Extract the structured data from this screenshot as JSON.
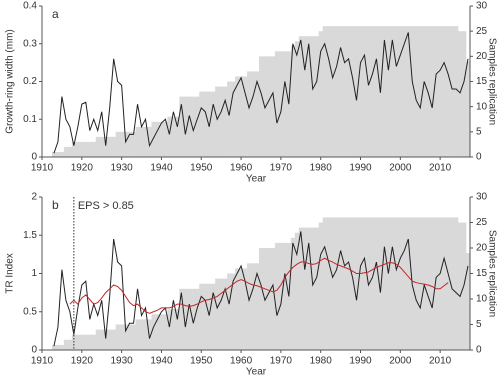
{
  "chart_data": [
    {
      "type": "line",
      "panel_label": "a",
      "xlabel": "Year",
      "ylabel": "Growth-ring width (mm)",
      "y2label": "Samples replication",
      "x": [
        1913,
        1914,
        1915,
        1916,
        1917,
        1918,
        1919,
        1920,
        1921,
        1922,
        1923,
        1924,
        1925,
        1926,
        1927,
        1928,
        1929,
        1930,
        1931,
        1932,
        1933,
        1934,
        1935,
        1936,
        1937,
        1938,
        1939,
        1940,
        1941,
        1942,
        1943,
        1944,
        1945,
        1946,
        1947,
        1948,
        1949,
        1950,
        1951,
        1952,
        1953,
        1954,
        1955,
        1956,
        1957,
        1958,
        1959,
        1960,
        1961,
        1962,
        1963,
        1964,
        1965,
        1966,
        1967,
        1968,
        1969,
        1970,
        1971,
        1972,
        1973,
        1974,
        1975,
        1976,
        1977,
        1978,
        1979,
        1980,
        1981,
        1982,
        1983,
        1984,
        1985,
        1986,
        1987,
        1988,
        1989,
        1990,
        1991,
        1992,
        1993,
        1994,
        1995,
        1996,
        1997,
        1998,
        1999,
        2000,
        2001,
        2002,
        2003,
        2004,
        2005,
        2006,
        2007,
        2008,
        2009,
        2010,
        2011,
        2012,
        2013,
        2014,
        2015,
        2016,
        2017
      ],
      "series": [
        {
          "type": "area",
          "axis": "y2",
          "color": "#d9d9d9",
          "values": [
            1,
            1,
            1,
            2,
            2,
            3,
            3,
            3,
            3,
            3,
            3,
            4,
            4,
            4,
            4,
            4,
            5,
            5,
            5,
            5,
            5,
            6,
            6,
            6,
            6,
            7,
            7,
            7,
            7,
            8,
            8,
            8,
            12,
            12,
            12,
            12,
            12,
            13,
            13,
            13,
            13,
            14,
            14,
            14,
            15,
            15,
            16,
            16,
            16,
            17,
            17,
            17,
            20,
            20,
            20,
            20,
            21,
            21,
            21,
            21,
            22,
            23,
            24,
            24,
            24,
            24,
            24,
            25,
            26,
            26,
            26,
            26,
            26,
            26,
            26,
            26,
            26,
            26,
            26,
            26,
            26,
            26,
            26,
            26,
            26,
            26,
            26,
            26,
            26,
            26,
            26,
            26,
            26,
            26,
            26,
            26,
            26,
            26,
            26,
            26,
            26,
            26,
            25,
            25,
            19
          ]
        },
        {
          "type": "line",
          "color": "#222222",
          "values": [
            0.01,
            0.04,
            0.16,
            0.1,
            0.08,
            0.03,
            0.08,
            0.14,
            0.145,
            0.07,
            0.1,
            0.07,
            0.12,
            0.03,
            0.13,
            0.26,
            0.2,
            0.19,
            0.04,
            0.06,
            0.06,
            0.14,
            0.08,
            0.1,
            0.03,
            0.05,
            0.07,
            0.09,
            0.1,
            0.06,
            0.12,
            0.08,
            0.14,
            0.06,
            0.11,
            0.07,
            0.1,
            0.13,
            0.12,
            0.08,
            0.14,
            0.1,
            0.12,
            0.15,
            0.11,
            0.17,
            0.19,
            0.21,
            0.17,
            0.13,
            0.16,
            0.2,
            0.17,
            0.13,
            0.15,
            0.17,
            0.09,
            0.12,
            0.2,
            0.14,
            0.3,
            0.27,
            0.31,
            0.23,
            0.3,
            0.18,
            0.2,
            0.28,
            0.3,
            0.26,
            0.21,
            0.24,
            0.29,
            0.25,
            0.26,
            0.21,
            0.15,
            0.25,
            0.27,
            0.19,
            0.22,
            0.26,
            0.17,
            0.31,
            0.23,
            0.31,
            0.24,
            0.27,
            0.3,
            0.33,
            0.2,
            0.15,
            0.13,
            0.2,
            0.17,
            0.13,
            0.22,
            0.23,
            0.25,
            0.22,
            0.18,
            0.18,
            0.17,
            0.2,
            0.26
          ]
        }
      ],
      "xlim": [
        1910,
        2017.5
      ],
      "xticks": [
        1910,
        1920,
        1930,
        1940,
        1950,
        1960,
        1970,
        1980,
        1990,
        2000,
        2010
      ],
      "ylim": [
        0,
        0.4
      ],
      "yticks": [
        0,
        0.1,
        0.2,
        0.3,
        0.4
      ],
      "y2lim": [
        0,
        30
      ],
      "y2ticks": [
        0,
        5,
        10,
        15,
        20,
        25,
        30
      ]
    },
    {
      "type": "line",
      "panel_label": "b",
      "xlabel": "Year",
      "ylabel": "TR Index",
      "y2label": "Samples replication",
      "annotation": {
        "text": "EPS > 0.85",
        "x": 1918
      },
      "x": [
        1913,
        1914,
        1915,
        1916,
        1917,
        1918,
        1919,
        1920,
        1921,
        1922,
        1923,
        1924,
        1925,
        1926,
        1927,
        1928,
        1929,
        1930,
        1931,
        1932,
        1933,
        1934,
        1935,
        1936,
        1937,
        1938,
        1939,
        1940,
        1941,
        1942,
        1943,
        1944,
        1945,
        1946,
        1947,
        1948,
        1949,
        1950,
        1951,
        1952,
        1953,
        1954,
        1955,
        1956,
        1957,
        1958,
        1959,
        1960,
        1961,
        1962,
        1963,
        1964,
        1965,
        1966,
        1967,
        1968,
        1969,
        1970,
        1971,
        1972,
        1973,
        1974,
        1975,
        1976,
        1977,
        1978,
        1979,
        1980,
        1981,
        1982,
        1983,
        1984,
        1985,
        1986,
        1987,
        1988,
        1989,
        1990,
        1991,
        1992,
        1993,
        1994,
        1995,
        1996,
        1997,
        1998,
        1999,
        2000,
        2001,
        2002,
        2003,
        2004,
        2005,
        2006,
        2007,
        2008,
        2009,
        2010,
        2011,
        2012,
        2013,
        2014,
        2015,
        2016,
        2017
      ],
      "series": [
        {
          "type": "area",
          "axis": "y2",
          "color": "#d9d9d9",
          "values": [
            1,
            1,
            1,
            2,
            2,
            3,
            3,
            3,
            3,
            3,
            3,
            4,
            4,
            4,
            4,
            4,
            5,
            5,
            5,
            5,
            5,
            6,
            6,
            6,
            6,
            7,
            7,
            7,
            7,
            8,
            8,
            8,
            12,
            12,
            12,
            12,
            12,
            13,
            13,
            13,
            13,
            14,
            14,
            14,
            15,
            15,
            16,
            16,
            16,
            17,
            17,
            17,
            20,
            20,
            20,
            20,
            21,
            21,
            21,
            21,
            22,
            23,
            24,
            24,
            24,
            24,
            24,
            25,
            26,
            26,
            26,
            26,
            26,
            26,
            26,
            26,
            26,
            26,
            26,
            26,
            26,
            26,
            26,
            26,
            26,
            26,
            26,
            26,
            26,
            26,
            26,
            26,
            26,
            26,
            26,
            26,
            26,
            26,
            26,
            26,
            26,
            26,
            25,
            25,
            19
          ]
        },
        {
          "type": "line",
          "color": "#222222",
          "values": [
            0.05,
            0.3,
            1.05,
            0.65,
            0.5,
            0.2,
            0.55,
            0.85,
            0.9,
            0.4,
            0.6,
            0.45,
            0.65,
            0.15,
            0.7,
            1.45,
            1.15,
            1.1,
            0.25,
            0.35,
            0.35,
            0.8,
            0.45,
            0.55,
            0.15,
            0.3,
            0.4,
            0.5,
            0.55,
            0.3,
            0.65,
            0.4,
            0.75,
            0.3,
            0.6,
            0.35,
            0.55,
            0.7,
            0.65,
            0.45,
            0.75,
            0.55,
            0.65,
            0.8,
            0.6,
            0.9,
            1.0,
            1.1,
            0.9,
            0.65,
            0.8,
            1.0,
            0.85,
            0.65,
            0.75,
            0.85,
            0.45,
            0.6,
            1.0,
            0.7,
            1.4,
            1.25,
            1.55,
            1.05,
            1.4,
            0.85,
            0.95,
            1.25,
            1.35,
            1.15,
            0.95,
            1.05,
            1.3,
            1.1,
            1.15,
            0.95,
            0.65,
            1.1,
            1.2,
            0.85,
            0.95,
            1.15,
            0.75,
            1.35,
            1.0,
            1.35,
            1.05,
            1.2,
            1.3,
            1.45,
            0.85,
            0.65,
            0.55,
            0.85,
            0.7,
            0.55,
            0.95,
            1.0,
            1.2,
            1.0,
            0.8,
            0.75,
            0.7,
            0.85,
            1.1
          ]
        },
        {
          "type": "line",
          "color": "#c0272d",
          "values": [
            null,
            null,
            null,
            null,
            0.6,
            0.65,
            0.6,
            0.68,
            0.72,
            0.66,
            0.6,
            0.62,
            0.68,
            0.75,
            0.8,
            0.85,
            0.83,
            0.78,
            0.7,
            0.62,
            0.58,
            0.6,
            0.55,
            0.5,
            0.48,
            0.5,
            0.52,
            0.55,
            0.55,
            0.55,
            0.57,
            0.6,
            0.6,
            0.58,
            0.57,
            0.58,
            0.6,
            0.63,
            0.65,
            0.66,
            0.68,
            0.7,
            0.74,
            0.78,
            0.82,
            0.86,
            0.9,
            0.92,
            0.9,
            0.87,
            0.85,
            0.84,
            0.82,
            0.8,
            0.78,
            0.76,
            0.78,
            0.85,
            0.95,
            1.02,
            1.08,
            1.12,
            1.15,
            1.15,
            1.13,
            1.12,
            1.13,
            1.17,
            1.2,
            1.17,
            1.15,
            1.12,
            1.1,
            1.08,
            1.06,
            1.03,
            1.0,
            1.0,
            1.01,
            1.02,
            1.05,
            1.08,
            1.1,
            1.12,
            1.14,
            1.14,
            1.12,
            1.08,
            1.02,
            0.96,
            0.9,
            0.88,
            0.87,
            0.86,
            0.85,
            0.83,
            0.8,
            0.8,
            0.84,
            0.88,
            null,
            null,
            null,
            null,
            null
          ]
        }
      ],
      "xlim": [
        1910,
        2017.5
      ],
      "xticks": [
        1910,
        1920,
        1930,
        1940,
        1950,
        1960,
        1970,
        1980,
        1990,
        2000,
        2010
      ],
      "ylim": [
        0,
        2
      ],
      "yticks": [
        0,
        0.5,
        1,
        1.5,
        2
      ],
      "y2lim": [
        0,
        30
      ],
      "y2ticks": [
        0,
        5,
        10,
        15,
        20,
        25,
        30
      ]
    }
  ]
}
